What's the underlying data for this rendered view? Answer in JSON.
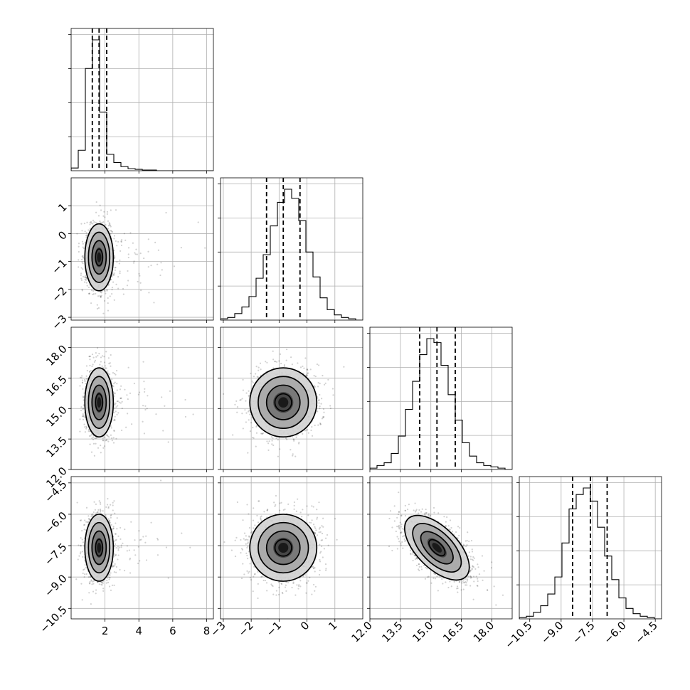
{
  "chart_data": {
    "type": "corner",
    "parameters": [
      {
        "index": 0,
        "range": [
          0,
          8.4
        ],
        "ticks": [
          2,
          4,
          6,
          8
        ],
        "tick_labels": [
          "2",
          "4",
          "6",
          "8"
        ],
        "quantiles": [
          1.25,
          1.65,
          2.1
        ],
        "hist_start": 0,
        "hist_step": 0.42,
        "hist_counts": [
          0.02,
          0.15,
          0.75,
          0.96,
          0.43,
          0.12,
          0.06,
          0.03,
          0.015,
          0.01,
          0.005,
          0.005,
          0,
          0,
          0,
          0,
          0,
          0,
          0,
          0
        ],
        "samples": {
          "mean": 1.65,
          "sd": 0.42,
          "n": 1400
        }
      },
      {
        "index": 1,
        "range": [
          -3.1,
          2.0
        ],
        "ticks": [
          -3,
          -2,
          -1,
          0,
          1
        ],
        "tick_labels": [
          "−3",
          "−2",
          "−1",
          "0",
          "1"
        ],
        "quantiles": [
          -1.45,
          -0.85,
          -0.25
        ],
        "hist_start": -3.1,
        "hist_step": 0.255,
        "hist_counts": [
          0.01,
          0.02,
          0.05,
          0.1,
          0.18,
          0.32,
          0.5,
          0.72,
          0.9,
          1.0,
          0.93,
          0.76,
          0.52,
          0.33,
          0.17,
          0.08,
          0.04,
          0.02,
          0.01,
          0
        ],
        "samples": {
          "mean": -0.85,
          "sd": 0.6,
          "n": 1400
        }
      },
      {
        "index": 2,
        "range": [
          12.0,
          19.0
        ],
        "ticks": [
          12.0,
          13.5,
          15.0,
          16.5,
          18.0
        ],
        "tick_labels": [
          "12.0",
          "13.5",
          "15.0",
          "16.5",
          "18.0"
        ],
        "quantiles": [
          14.45,
          15.3,
          16.2
        ],
        "hist_start": 12.0,
        "hist_step": 0.35,
        "hist_counts": [
          0.01,
          0.03,
          0.05,
          0.12,
          0.25,
          0.45,
          0.66,
          0.86,
          0.98,
          0.95,
          0.78,
          0.56,
          0.37,
          0.2,
          0.1,
          0.05,
          0.03,
          0.02,
          0.01,
          0
        ],
        "samples": {
          "mean": 15.3,
          "sd": 0.85,
          "n": 1400
        }
      },
      {
        "index": 3,
        "range": [
          -11.0,
          -4.2
        ],
        "ticks": [
          -10.5,
          -9.0,
          -7.5,
          -6.0,
          -4.5
        ],
        "tick_labels": [
          "−10.5",
          "−9.0",
          "−7.5",
          "−6.0",
          "−4.5"
        ],
        "quantiles": [
          -8.45,
          -7.6,
          -6.8
        ],
        "hist_start": -11.0,
        "hist_step": 0.34,
        "hist_counts": [
          0.01,
          0.02,
          0.05,
          0.1,
          0.19,
          0.32,
          0.58,
          0.84,
          0.95,
          1.0,
          0.9,
          0.7,
          0.48,
          0.3,
          0.16,
          0.08,
          0.04,
          0.02,
          0.01,
          0
        ],
        "samples": {
          "mean": -7.6,
          "sd": 0.8,
          "n": 1400
        }
      }
    ],
    "correlations": [
      {
        "row": 1,
        "col": 0,
        "rho": 0.0
      },
      {
        "row": 2,
        "col": 0,
        "rho": 0.0
      },
      {
        "row": 2,
        "col": 1,
        "rho": 0.0
      },
      {
        "row": 3,
        "col": 0,
        "rho": 0.0
      },
      {
        "row": 3,
        "col": 1,
        "rho": 0.0
      },
      {
        "row": 3,
        "col": 2,
        "rho": -0.6
      }
    ],
    "contour_levels_sigma": [
      0.5,
      1.0,
      1.5,
      2.0
    ],
    "grid": true,
    "colors": {
      "ink": "#000000",
      "grid": "#b0b0b0",
      "scatter": "#000000"
    }
  }
}
